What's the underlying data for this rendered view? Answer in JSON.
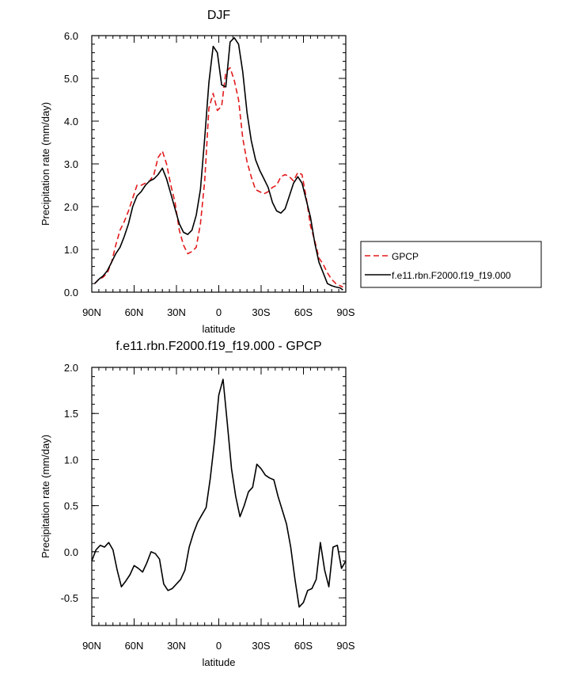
{
  "chart_data": [
    {
      "type": "line",
      "title": "DJF",
      "xlabel": "latitude",
      "ylabel": "Precipitation rate (mm/day)",
      "xlim": [
        90,
        -90
      ],
      "ylim": [
        0,
        6
      ],
      "x_ticks": [
        90,
        60,
        30,
        0,
        -30,
        -60,
        -90
      ],
      "x_tick_labels": [
        "90N",
        "60N",
        "30N",
        "0",
        "30S",
        "60S",
        "90S"
      ],
      "y_ticks": [
        0,
        1,
        2,
        3,
        4,
        5,
        6
      ],
      "y_tick_labels": [
        "0.0",
        "1.0",
        "2.0",
        "3.0",
        "4.0",
        "5.0",
        "6.0"
      ],
      "legend": {
        "position": "right",
        "entries": [
          "GPCP",
          "f.e11.rbn.F2000.f19_f19.000"
        ]
      },
      "series": [
        {
          "name": "GPCP",
          "style": "dashed",
          "color": "#e31a1c",
          "x": [
            88,
            85,
            82,
            79,
            76,
            73,
            70,
            67,
            64,
            61,
            58,
            55,
            52,
            49,
            46,
            43,
            40,
            37,
            34,
            31,
            28,
            25,
            22,
            19,
            16,
            13,
            10,
            7,
            4,
            1,
            -2,
            -5,
            -8,
            -11,
            -14,
            -17,
            -20,
            -23,
            -26,
            -29,
            -32,
            -35,
            -38,
            -41,
            -44,
            -47,
            -50,
            -53,
            -56,
            -59,
            -62,
            -65,
            -68,
            -71,
            -74,
            -77,
            -80,
            -83,
            -86,
            -88
          ],
          "values": [
            0.2,
            0.3,
            0.35,
            0.45,
            0.7,
            1.1,
            1.45,
            1.65,
            1.9,
            2.2,
            2.5,
            2.5,
            2.55,
            2.6,
            2.75,
            3.15,
            3.3,
            3.0,
            2.5,
            2.1,
            1.45,
            1.1,
            0.9,
            0.95,
            1.05,
            1.6,
            2.6,
            4.3,
            4.65,
            4.25,
            4.35,
            5.15,
            5.25,
            4.95,
            4.5,
            3.6,
            3.05,
            2.7,
            2.4,
            2.35,
            2.3,
            2.35,
            2.45,
            2.5,
            2.7,
            2.75,
            2.7,
            2.6,
            2.8,
            2.75,
            2.2,
            1.55,
            1.2,
            0.8,
            0.65,
            0.45,
            0.3,
            0.2,
            0.15,
            0.12
          ]
        },
        {
          "name": "f.e11.rbn.F2000.f19_f19.000",
          "style": "solid",
          "color": "#000000",
          "x": [
            88,
            85,
            82,
            79,
            76,
            73,
            70,
            67,
            64,
            61,
            58,
            55,
            52,
            49,
            46,
            43,
            40,
            37,
            34,
            31,
            28,
            25,
            22,
            19,
            16,
            13,
            10,
            7,
            4,
            1,
            -2,
            -5,
            -8,
            -11,
            -14,
            -17,
            -20,
            -23,
            -26,
            -29,
            -32,
            -35,
            -38,
            -41,
            -44,
            -47,
            -50,
            -53,
            -56,
            -59,
            -62,
            -65,
            -68,
            -71,
            -74,
            -77,
            -80,
            -83,
            -86,
            -88
          ],
          "values": [
            0.2,
            0.3,
            0.38,
            0.5,
            0.7,
            0.9,
            1.05,
            1.3,
            1.6,
            2.0,
            2.25,
            2.35,
            2.5,
            2.6,
            2.65,
            2.75,
            2.9,
            2.65,
            2.3,
            1.95,
            1.6,
            1.4,
            1.35,
            1.45,
            1.8,
            2.4,
            3.6,
            4.9,
            5.75,
            5.6,
            4.85,
            4.8,
            5.85,
            5.95,
            5.8,
            5.15,
            4.2,
            3.55,
            3.1,
            2.85,
            2.65,
            2.45,
            2.1,
            1.9,
            1.85,
            1.95,
            2.25,
            2.55,
            2.7,
            2.55,
            2.15,
            1.75,
            1.15,
            0.7,
            0.45,
            0.2,
            0.15,
            0.12,
            0.1,
            0.05
          ]
        }
      ]
    },
    {
      "type": "line",
      "title": "f.e11.rbn.F2000.f19_f19.000 - GPCP",
      "xlabel": "latitude",
      "ylabel": "Precipitation rate (mm/day)",
      "xlim": [
        90,
        -90
      ],
      "ylim": [
        -0.8,
        2.0
      ],
      "x_ticks": [
        90,
        60,
        30,
        0,
        -30,
        -60,
        -90
      ],
      "x_tick_labels": [
        "90N",
        "60N",
        "30N",
        "0",
        "30S",
        "60S",
        "90S"
      ],
      "y_ticks": [
        -0.5,
        0,
        0.5,
        1.0,
        1.5,
        2.0
      ],
      "y_tick_labels": [
        "-0.5",
        "0.0",
        "0.5",
        "1.0",
        "1.5",
        "2.0"
      ],
      "series": [
        {
          "name": "f.e11.rbn.F2000.f19_f19.000 - GPCP",
          "style": "solid",
          "color": "#000000",
          "x": [
            90,
            87,
            84,
            81,
            78,
            75,
            72,
            69,
            66,
            63,
            60,
            57,
            54,
            51,
            48,
            45,
            42,
            39,
            36,
            33,
            30,
            27,
            24,
            21,
            18,
            15,
            12,
            9,
            6,
            3,
            0,
            -3,
            -6,
            -9,
            -12,
            -15,
            -18,
            -21,
            -24,
            -27,
            -30,
            -33,
            -36,
            -39,
            -42,
            -45,
            -48,
            -51,
            -54,
            -57,
            -60,
            -63,
            -66,
            -69,
            -72,
            -75,
            -78,
            -81,
            -84,
            -87,
            -90
          ],
          "values": [
            -0.1,
            0.02,
            0.07,
            0.05,
            0.1,
            0.02,
            -0.2,
            -0.38,
            -0.32,
            -0.25,
            -0.15,
            -0.18,
            -0.22,
            -0.12,
            0.0,
            -0.02,
            -0.08,
            -0.35,
            -0.42,
            -0.4,
            -0.35,
            -0.3,
            -0.2,
            0.05,
            0.2,
            0.32,
            0.4,
            0.48,
            0.8,
            1.2,
            1.7,
            1.87,
            1.4,
            0.9,
            0.6,
            0.38,
            0.5,
            0.65,
            0.7,
            0.95,
            0.9,
            0.83,
            0.8,
            0.78,
            0.6,
            0.45,
            0.3,
            0.05,
            -0.3,
            -0.6,
            -0.55,
            -0.42,
            -0.4,
            -0.3,
            0.1,
            -0.2,
            -0.38,
            0.05,
            0.07,
            -0.18,
            -0.1
          ]
        }
      ]
    }
  ]
}
